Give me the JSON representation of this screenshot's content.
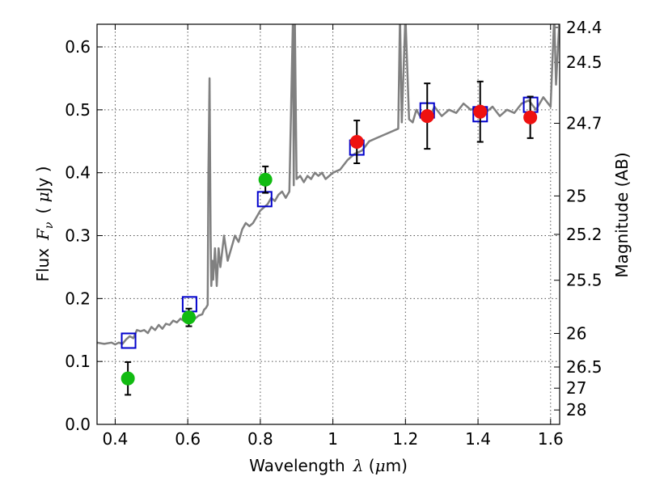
{
  "chart_data": {
    "type": "scatter",
    "title": "",
    "xlabel_prefix": "Wavelength",
    "xlabel_symbol": "λ",
    "xlabel_unit_open": " (",
    "xlabel_unit_mu": "μ",
    "xlabel_unit_rest": "m)",
    "ylabel_prefix": "Flux",
    "ylabel_symbol_F": "F",
    "ylabel_symbol_sub": "ν",
    "ylabel_unit_open": "( ",
    "ylabel_unit_mu": "μ",
    "ylabel_unit_rest": "Jy )",
    "y2label": "Magnitude (AB)",
    "xlim": [
      0.35,
      1.625
    ],
    "ylim": [
      0.0,
      0.636
    ],
    "grid": true,
    "x_ticks": [
      0.4,
      0.6,
      0.8,
      1.0,
      1.2,
      1.4,
      1.6
    ],
    "x_tick_labels": [
      "0.4",
      "0.6",
      "0.8",
      "1",
      "1.2",
      "1.4",
      "1.6"
    ],
    "y_ticks": [
      0.0,
      0.1,
      0.2,
      0.3,
      0.4,
      0.5,
      0.6
    ],
    "y_tick_labels": [
      "0.0",
      "0.1",
      "0.2",
      "0.3",
      "0.4",
      "0.5",
      "0.6"
    ],
    "mag_ticks": [
      24.4,
      24.5,
      24.7,
      25,
      25.2,
      25.5,
      26,
      26.5,
      27,
      28
    ],
    "mag_tick_labels": [
      "24.4",
      "24.5",
      "24.7",
      "25",
      "25.2",
      "25.5",
      "26",
      "26.5",
      "27",
      "28"
    ],
    "colors": {
      "spectrum": "#808080",
      "model": "#0000cc",
      "optical": "#11bb11",
      "infrared": "#ee1111",
      "errorbar": "#000000",
      "grid": "#555555"
    },
    "series": [
      {
        "name": "model-spectrum",
        "kind": "line",
        "x": [
          0.35,
          0.37,
          0.39,
          0.4,
          0.41,
          0.42,
          0.43,
          0.44,
          0.45,
          0.46,
          0.47,
          0.48,
          0.49,
          0.5,
          0.51,
          0.52,
          0.53,
          0.54,
          0.55,
          0.56,
          0.57,
          0.58,
          0.59,
          0.6,
          0.61,
          0.62,
          0.63,
          0.64,
          0.645,
          0.65,
          0.655,
          0.657,
          0.66,
          0.663,
          0.665,
          0.668,
          0.67,
          0.675,
          0.68,
          0.685,
          0.69,
          0.7,
          0.71,
          0.72,
          0.73,
          0.74,
          0.75,
          0.76,
          0.77,
          0.78,
          0.79,
          0.8,
          0.81,
          0.82,
          0.83,
          0.84,
          0.85,
          0.86,
          0.87,
          0.88,
          0.89,
          0.892,
          0.895,
          0.9,
          0.91,
          0.92,
          0.93,
          0.94,
          0.95,
          0.96,
          0.97,
          0.98,
          1.0,
          1.02,
          1.04,
          1.06,
          1.08,
          1.1,
          1.12,
          1.14,
          1.16,
          1.18,
          1.185,
          1.19,
          1.2,
          1.21,
          1.22,
          1.23,
          1.24,
          1.25,
          1.26,
          1.28,
          1.3,
          1.32,
          1.34,
          1.36,
          1.38,
          1.4,
          1.42,
          1.44,
          1.46,
          1.48,
          1.5,
          1.52,
          1.54,
          1.56,
          1.58,
          1.6,
          1.61,
          1.615,
          1.625
        ],
        "y": [
          0.13,
          0.128,
          0.13,
          0.127,
          0.13,
          0.128,
          0.135,
          0.14,
          0.137,
          0.15,
          0.148,
          0.15,
          0.145,
          0.155,
          0.15,
          0.158,
          0.152,
          0.16,
          0.158,
          0.165,
          0.162,
          0.168,
          0.164,
          0.165,
          0.17,
          0.168,
          0.173,
          0.175,
          0.182,
          0.185,
          0.19,
          0.4,
          0.55,
          0.3,
          0.22,
          0.26,
          0.23,
          0.28,
          0.22,
          0.28,
          0.25,
          0.3,
          0.26,
          0.28,
          0.3,
          0.29,
          0.31,
          0.32,
          0.315,
          0.32,
          0.33,
          0.34,
          0.345,
          0.35,
          0.36,
          0.355,
          0.365,
          0.37,
          0.36,
          0.37,
          0.65,
          0.38,
          0.65,
          0.39,
          0.395,
          0.385,
          0.395,
          0.39,
          0.4,
          0.395,
          0.4,
          0.39,
          0.4,
          0.405,
          0.42,
          0.43,
          0.435,
          0.45,
          0.455,
          0.46,
          0.465,
          0.47,
          0.65,
          0.48,
          0.65,
          0.485,
          0.48,
          0.5,
          0.49,
          0.495,
          0.48,
          0.505,
          0.49,
          0.5,
          0.495,
          0.51,
          0.5,
          0.505,
          0.495,
          0.505,
          0.49,
          0.5,
          0.495,
          0.51,
          0.515,
          0.5,
          0.52,
          0.505,
          0.65,
          0.54,
          0.65
        ]
      },
      {
        "name": "model-photometry",
        "kind": "open-square",
        "x": [
          0.437,
          0.605,
          0.812,
          1.066,
          1.26,
          1.406,
          1.545
        ],
        "y": [
          0.133,
          0.191,
          0.358,
          0.44,
          0.499,
          0.493,
          0.508
        ]
      },
      {
        "name": "optical-photometry",
        "kind": "filled-circle",
        "x": [
          0.435,
          0.603,
          0.814
        ],
        "y": [
          0.073,
          0.17,
          0.389
        ],
        "yerr": [
          0.026,
          0.014,
          0.021
        ]
      },
      {
        "name": "infrared-photometry",
        "kind": "filled-circle",
        "x": [
          1.066,
          1.26,
          1.406,
          1.544
        ],
        "y": [
          0.449,
          0.49,
          0.497,
          0.488
        ],
        "yerr": [
          0.034,
          0.052,
          0.048,
          0.033
        ]
      }
    ]
  }
}
